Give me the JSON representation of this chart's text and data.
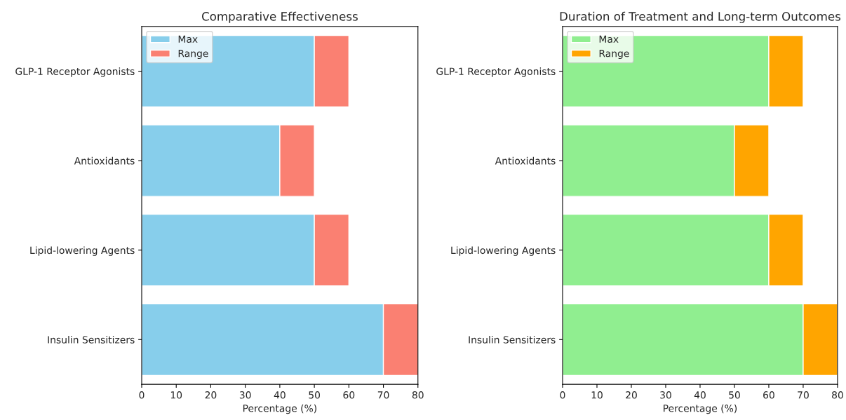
{
  "chart_data": [
    {
      "type": "bar",
      "orientation": "horizontal",
      "stacked": true,
      "title": "Comparative Effectiveness",
      "xlabel": "Percentage (%)",
      "categories": [
        "GLP-1 Receptor Agonists",
        "Antioxidants",
        "Lipid-lowering Agents",
        "Insulin Sensitizers"
      ],
      "series": [
        {
          "name": "Max",
          "color": "#87ceeb",
          "values": [
            50,
            40,
            50,
            70
          ]
        },
        {
          "name": "Range",
          "color": "#fa8072",
          "values": [
            10,
            10,
            10,
            10
          ]
        }
      ],
      "xlim": [
        0,
        80
      ],
      "xticks": [
        0,
        10,
        20,
        30,
        40,
        50,
        60,
        70,
        80
      ],
      "legend": "top left",
      "grid": false
    },
    {
      "type": "bar",
      "orientation": "horizontal",
      "stacked": true,
      "title": "Duration of Treatment and Long-term Outcomes",
      "xlabel": "Percentage (%)",
      "categories": [
        "GLP-1 Receptor Agonists",
        "Antioxidants",
        "Lipid-lowering Agents",
        "Insulin Sensitizers"
      ],
      "series": [
        {
          "name": "Max",
          "color": "#90ee90",
          "values": [
            60,
            50,
            60,
            70
          ]
        },
        {
          "name": "Range",
          "color": "#ffa500",
          "values": [
            10,
            10,
            10,
            10
          ]
        }
      ],
      "xlim": [
        0,
        80
      ],
      "xticks": [
        0,
        10,
        20,
        30,
        40,
        50,
        60,
        70,
        80
      ],
      "legend": "top left",
      "grid": false
    }
  ]
}
